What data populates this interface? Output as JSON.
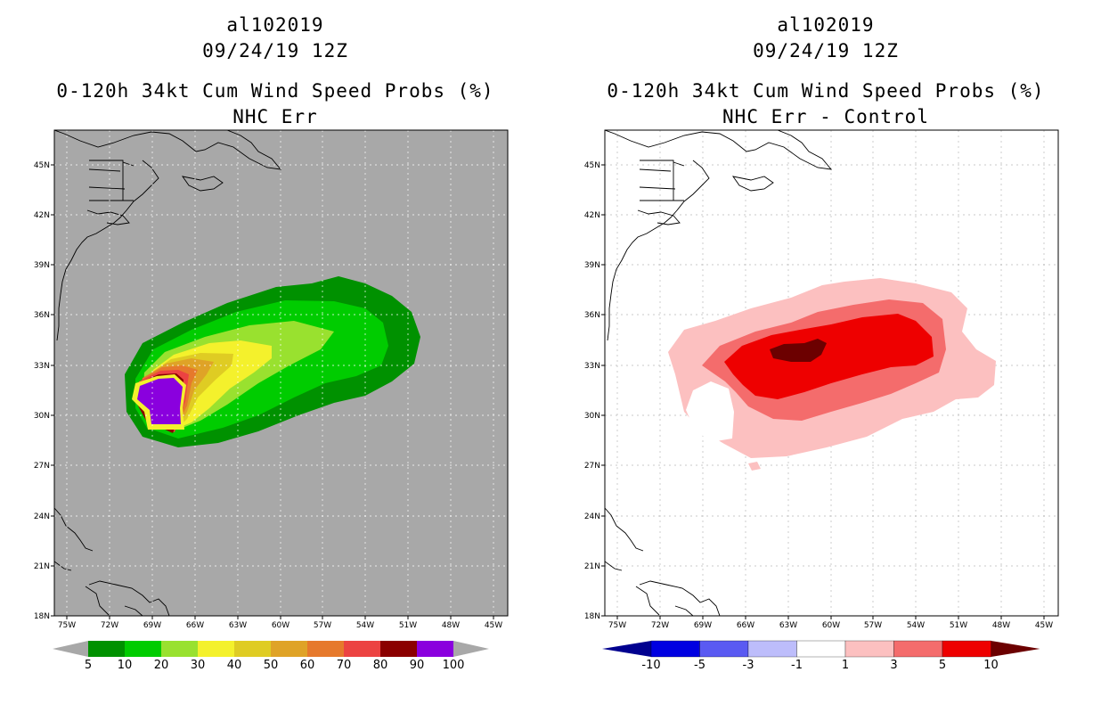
{
  "left": {
    "storm_id": "al102019",
    "datetime": "09/24/19 12Z",
    "product": "0-120h 34kt Cum Wind Speed Probs (%)",
    "subtitle": "NHC Err",
    "colorbar": {
      "labels": [
        "5",
        "10",
        "20",
        "30",
        "40",
        "50",
        "60",
        "70",
        "80",
        "90",
        "100"
      ],
      "colors": [
        "#009100",
        "#00cc00",
        "#99e12f",
        "#f4f12c",
        "#dfcc23",
        "#dfa327",
        "#e6792c",
        "#ec4342",
        "#8b0000",
        "#8a00de"
      ],
      "under_color": "#a8a8a8",
      "over_color": "#a8a8a8"
    }
  },
  "right": {
    "storm_id": "al102019",
    "datetime": "09/24/19 12Z",
    "product": "0-120h 34kt Cum Wind Speed Probs (%)",
    "subtitle": "NHC Err - Control",
    "colorbar": {
      "labels": [
        "-10",
        "-5",
        "-3",
        "-1",
        "1",
        "3",
        "5",
        "10"
      ],
      "colors": [
        "#0000e1",
        "#5a5af2",
        "#bdbdfb",
        "#ffffff",
        "#fcc0c0",
        "#f46c6c",
        "#ee0000"
      ],
      "under_color": "#00008f",
      "over_color": "#6c0000"
    }
  },
  "map": {
    "lat_labels": [
      "45N",
      "42N",
      "39N",
      "36N",
      "33N",
      "30N",
      "27N",
      "24N",
      "21N",
      "18N"
    ],
    "lon_labels": [
      "75W",
      "72W",
      "69W",
      "66W",
      "63W",
      "60W",
      "57W",
      "54W",
      "51W",
      "48W",
      "45W"
    ]
  },
  "colors": {
    "map_background_left": "#a8a8a8",
    "map_background_right": "#ffffff",
    "coastline": "#000000"
  }
}
